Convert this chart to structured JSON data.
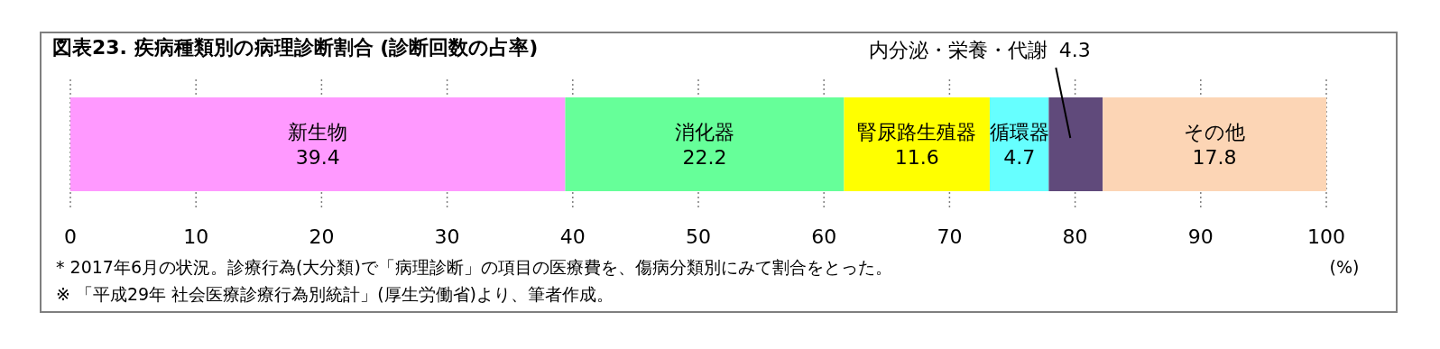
{
  "chart_data": {
    "type": "bar",
    "orientation": "horizontal",
    "stacked": true,
    "title": "図表23. 疾病種類別の病理診断割合 (診断回数の占率)",
    "categories": [
      null
    ],
    "series": [
      {
        "name": "新生物",
        "color": "#ff99ff",
        "values": [
          39.4
        ]
      },
      {
        "name": "消化器",
        "color": "#66ff99",
        "values": [
          22.2
        ]
      },
      {
        "name": "腎尿路生殖器",
        "color": "#ffff00",
        "values": [
          11.6
        ]
      },
      {
        "name": "循環器",
        "color": "#66ffff",
        "values": [
          4.7
        ]
      },
      {
        "name": "内分泌・栄養・代謝",
        "color": "#604a7b",
        "values": [
          4.3
        ]
      },
      {
        "name": "その他",
        "color": "#fcd5b5",
        "values": [
          17.8
        ]
      }
    ],
    "xlim": [
      0,
      100
    ],
    "xticks": [
      0,
      10,
      20,
      30,
      40,
      50,
      60,
      70,
      80,
      90,
      100
    ],
    "xlabel": "(%)",
    "grid": "x",
    "data_labels": true,
    "annotations": [
      "*  2017年6月の状況。診療行為(大分類)で「病理診断」の項目の医療費を、傷病分類別にみて割合をとった。",
      "※ 「平成29年 社会医療診療行為別統計」(厚生労働省)より、筆者作成。"
    ]
  }
}
